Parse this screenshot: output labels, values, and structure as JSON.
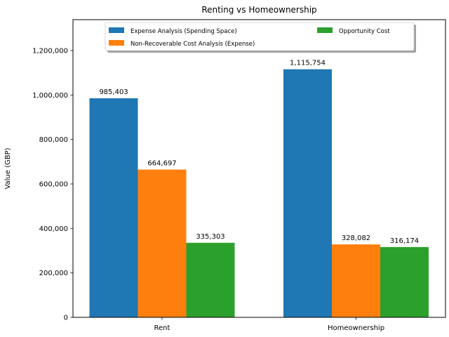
{
  "chart_data": {
    "type": "bar",
    "title": "Renting vs Homeownership",
    "xlabel": "",
    "ylabel": "Value (GBP)",
    "categories": [
      "Rent",
      "Homeownership"
    ],
    "series": [
      {
        "name": "Expense Analysis (Spending Space)",
        "color": "#1f77b4",
        "values": [
          985403,
          1115754
        ],
        "labels": [
          "985,403",
          "1,115,754"
        ]
      },
      {
        "name": "Non-Recoverable Cost Analysis (Expense)",
        "color": "#ff7f0e",
        "values": [
          664697,
          328082
        ],
        "labels": [
          "664,697",
          "328,082"
        ]
      },
      {
        "name": "Opportunity Cost",
        "color": "#2ca02c",
        "values": [
          335303,
          316174
        ],
        "labels": [
          "335,303",
          "316,174"
        ]
      }
    ],
    "ylim": [
      0,
      1338905
    ],
    "yticks": [
      0,
      200000,
      400000,
      600000,
      800000,
      1000000,
      1200000
    ],
    "ytick_labels": [
      "0",
      "200,000",
      "400,000",
      "600,000",
      "800,000",
      "1,000,000",
      "1,200,000"
    ],
    "legend_placement": "upper center",
    "legend_columns": 2,
    "grid": false
  }
}
